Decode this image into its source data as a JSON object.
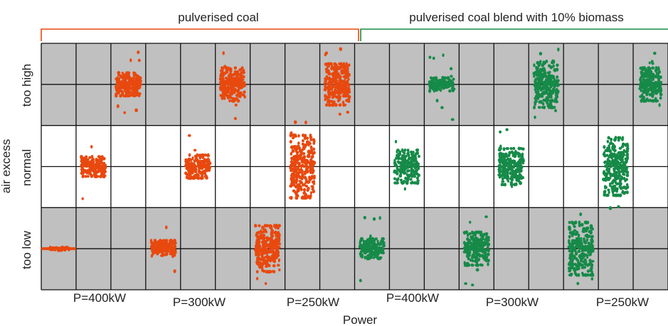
{
  "chart_data": {
    "type": "scatter",
    "title": "",
    "group_labels": [
      "pulverised coal",
      "pulverised coal blend with 10% biomass"
    ],
    "ylabel": "air excess",
    "xlabel": "Power",
    "y_categories": [
      "too low",
      "normal",
      "too high"
    ],
    "x_categories": [
      "P=400kW",
      "P=300kW",
      "P=250kW",
      "P=400kW",
      "P=300kW",
      "P=250kW"
    ],
    "grid": true,
    "legend": "none",
    "series": [
      {
        "group": "pulverised coal",
        "color": "#e8490f",
        "clusters": [
          {
            "power": "P=400kW",
            "air_excess": "too low",
            "x_center": 0.5,
            "y_center": 1.0,
            "x_spread": 0.3,
            "y_spread": 0.02,
            "n": 60,
            "outliers": 0
          },
          {
            "power": "P=400kW",
            "air_excess": "normal",
            "x_center": 1.5,
            "y_center": 2.0,
            "x_spread": 0.35,
            "y_spread": 0.12,
            "n": 170,
            "outliers": 3
          },
          {
            "power": "P=400kW",
            "air_excess": "too high",
            "x_center": 2.5,
            "y_center": 3.0,
            "x_spread": 0.35,
            "y_spread": 0.14,
            "n": 200,
            "outliers": 8
          },
          {
            "power": "P=300kW",
            "air_excess": "too low",
            "x_center": 3.5,
            "y_center": 1.0,
            "x_spread": 0.35,
            "y_spread": 0.1,
            "n": 180,
            "outliers": 3
          },
          {
            "power": "P=300kW",
            "air_excess": "normal",
            "x_center": 4.5,
            "y_center": 2.0,
            "x_spread": 0.35,
            "y_spread": 0.14,
            "n": 190,
            "outliers": 3
          },
          {
            "power": "P=300kW",
            "air_excess": "too high",
            "x_center": 5.5,
            "y_center": 3.0,
            "x_spread": 0.35,
            "y_spread": 0.2,
            "n": 230,
            "outliers": 5
          },
          {
            "power": "P=250kW",
            "air_excess": "too low",
            "x_center": 6.5,
            "y_center": 1.0,
            "x_spread": 0.35,
            "y_spread": 0.28,
            "n": 260,
            "outliers": 8
          },
          {
            "power": "P=250kW",
            "air_excess": "normal",
            "x_center": 7.5,
            "y_center": 2.0,
            "x_spread": 0.35,
            "y_spread": 0.38,
            "n": 280,
            "outliers": 10
          },
          {
            "power": "P=250kW",
            "air_excess": "too high",
            "x_center": 8.5,
            "y_center": 3.0,
            "x_spread": 0.35,
            "y_spread": 0.25,
            "n": 260,
            "outliers": 10
          }
        ]
      },
      {
        "group": "pulverised coal blend with 10% biomass",
        "color": "#168a48",
        "clusters": [
          {
            "power": "P=400kW",
            "air_excess": "too low",
            "x_center": 9.5,
            "y_center": 1.0,
            "x_spread": 0.35,
            "y_spread": 0.12,
            "n": 170,
            "outliers": 6
          },
          {
            "power": "P=400kW",
            "air_excess": "normal",
            "x_center": 10.5,
            "y_center": 2.0,
            "x_spread": 0.35,
            "y_spread": 0.2,
            "n": 190,
            "outliers": 6
          },
          {
            "power": "P=400kW",
            "air_excess": "too high",
            "x_center": 11.5,
            "y_center": 3.0,
            "x_spread": 0.35,
            "y_spread": 0.08,
            "n": 150,
            "outliers": 10
          },
          {
            "power": "P=300kW",
            "air_excess": "too low",
            "x_center": 12.5,
            "y_center": 1.0,
            "x_spread": 0.35,
            "y_spread": 0.2,
            "n": 210,
            "outliers": 5
          },
          {
            "power": "P=300kW",
            "air_excess": "normal",
            "x_center": 13.5,
            "y_center": 2.0,
            "x_spread": 0.35,
            "y_spread": 0.22,
            "n": 220,
            "outliers": 8
          },
          {
            "power": "P=300kW",
            "air_excess": "too high",
            "x_center": 14.5,
            "y_center": 3.0,
            "x_spread": 0.35,
            "y_spread": 0.28,
            "n": 240,
            "outliers": 12
          },
          {
            "power": "P=250kW",
            "air_excess": "too low",
            "x_center": 15.5,
            "y_center": 1.0,
            "x_spread": 0.35,
            "y_spread": 0.32,
            "n": 260,
            "outliers": 10
          },
          {
            "power": "P=250kW",
            "air_excess": "normal",
            "x_center": 16.5,
            "y_center": 2.0,
            "x_spread": 0.35,
            "y_spread": 0.35,
            "n": 270,
            "outliers": 12
          },
          {
            "power": "P=250kW",
            "air_excess": "too high",
            "x_center": 17.5,
            "y_center": 3.0,
            "x_spread": 0.3,
            "y_spread": 0.2,
            "n": 200,
            "outliers": 10
          }
        ]
      }
    ],
    "colors": {
      "coal": "#e8490f",
      "biomass": "#168a48",
      "band_shaded": "#c0c0c0",
      "band_clear": "#ffffff",
      "grid": "#111111"
    }
  }
}
